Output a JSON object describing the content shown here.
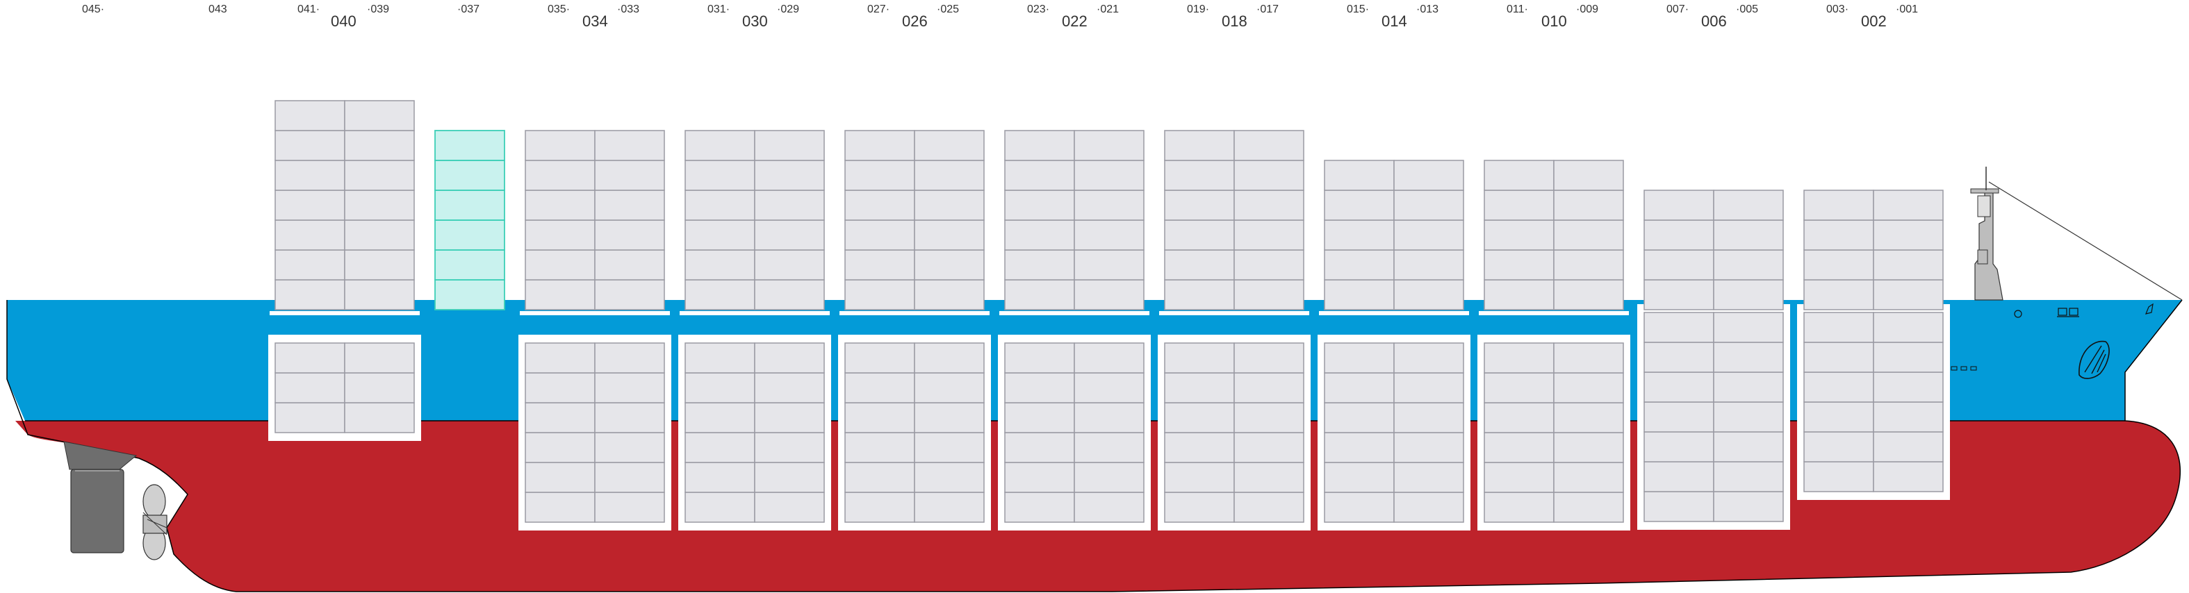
{
  "labels": {
    "bay_045": "045·",
    "bay_043": "043",
    "bay_041": "041·",
    "bay_040": "040",
    "bay_039": "·039",
    "bay_037": "·037",
    "bay_035": "035·",
    "bay_034": "034",
    "bay_033": "·033",
    "bay_031": "031·",
    "bay_030": "030",
    "bay_029": "·029",
    "bay_027": "027·",
    "bay_026": "026",
    "bay_025": "·025",
    "bay_023": "023·",
    "bay_022": "022",
    "bay_021": "·021",
    "bay_019": "019·",
    "bay_018": "018",
    "bay_017": "·017",
    "bay_015": "015·",
    "bay_014": "014",
    "bay_013": "·013",
    "bay_011": "011·",
    "bay_010": "010",
    "bay_009": "·009",
    "bay_007": "007·",
    "bay_006": "006",
    "bay_005": "·005",
    "bay_003": "003·",
    "bay_002": "002",
    "bay_001": "·001"
  },
  "colors": {
    "hull_blue": "#039BD8",
    "hull_red": "#BE232B",
    "container_fill": "#E6E6EA",
    "container_stroke": "#9A9AA3",
    "highlight_fill": "#C9F2EE",
    "highlight_stroke": "#3CCFB7",
    "hatch_white": "#FFFFFF",
    "machinery_gray": "#6E6E6E"
  },
  "icons": {
    "propeller": "propeller-icon",
    "rudder": "rudder-icon",
    "bridge": "bridge-tower-icon",
    "anchor": "bow-anchor-icon"
  }
}
